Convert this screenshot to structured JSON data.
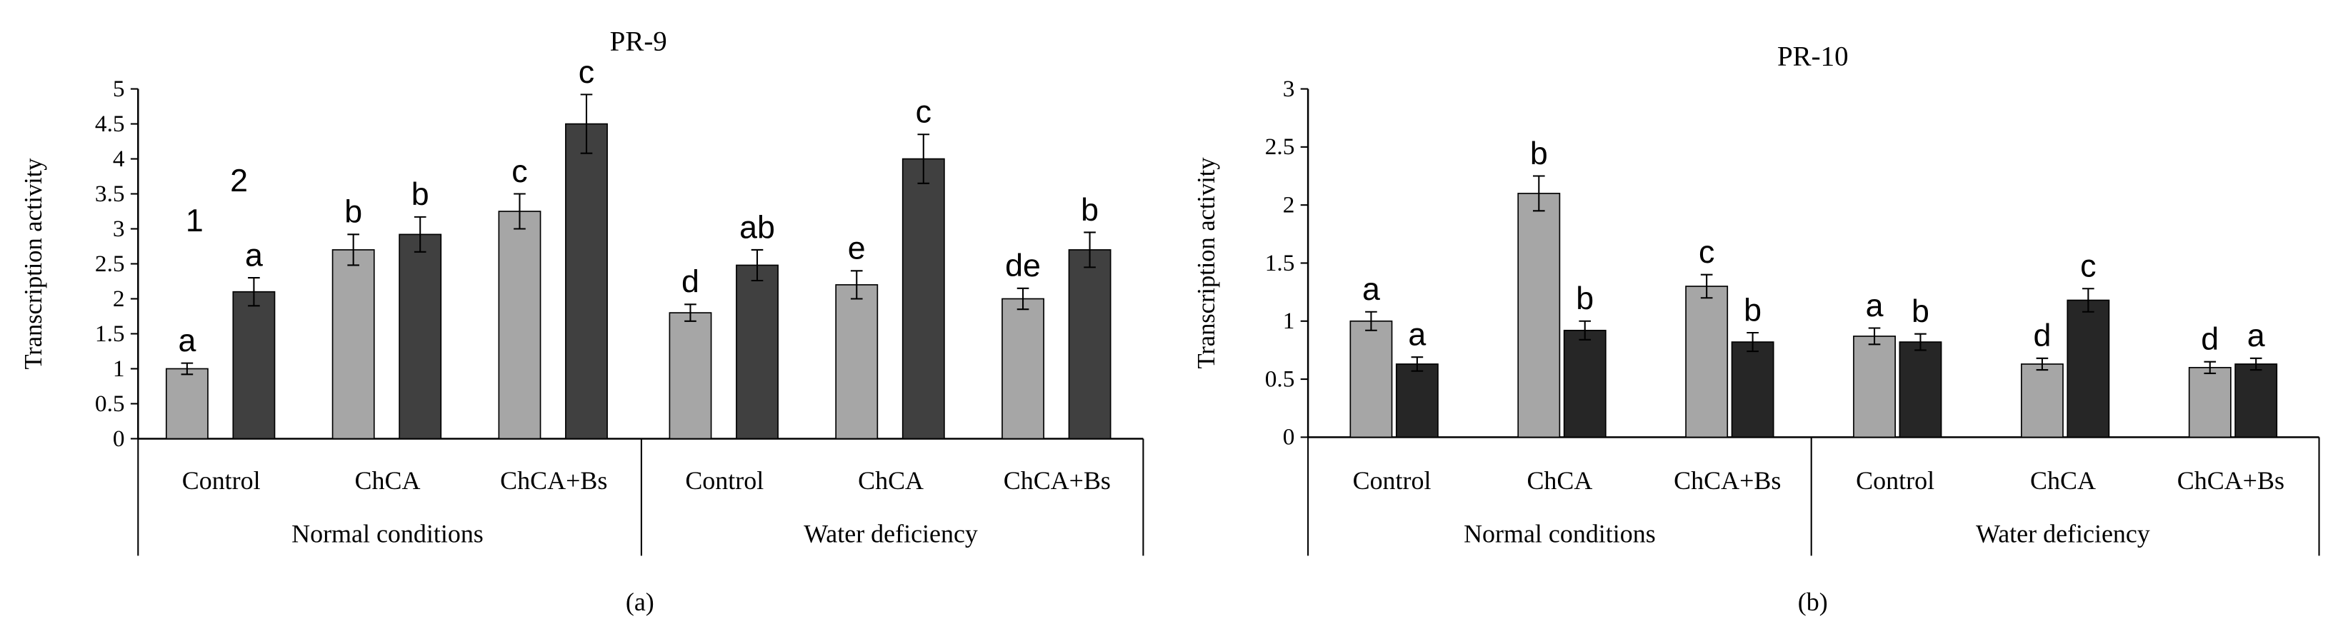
{
  "colors": {
    "series_1": "#a6a6a6",
    "series_2": "#404040",
    "series_2_alt": "#262626",
    "axis": "#000000",
    "background": "#ffffff"
  },
  "chart_data": [
    {
      "type": "bar",
      "title": "PR-9",
      "panel_label": "(a)",
      "ylabel": "Transcription activity",
      "xlabel": "",
      "ylim": [
        0,
        5
      ],
      "yticks": [
        "0",
        "0.5",
        "1",
        "1.5",
        "2",
        "2.5",
        "3",
        "3.5",
        "4",
        "4.5",
        "5"
      ],
      "grid": false,
      "categories": [
        "Control",
        "ChCA",
        "ChCA+Bs",
        "Control",
        "ChCA",
        "ChCA+Bs"
      ],
      "groups": [
        {
          "label": "Normal conditions",
          "span": [
            0,
            2
          ]
        },
        {
          "label": "Water deficiency",
          "span": [
            3,
            5
          ]
        }
      ],
      "series": [
        {
          "name": "1",
          "values": [
            1.0,
            2.7,
            3.25,
            1.8,
            2.2,
            2.0
          ],
          "errors": [
            0.08,
            0.22,
            0.25,
            0.12,
            0.2,
            0.15
          ],
          "letters": [
            "a",
            "b",
            "c",
            "d",
            "e",
            "de"
          ]
        },
        {
          "name": "2",
          "values": [
            2.1,
            2.92,
            4.5,
            2.48,
            4.0,
            2.7
          ],
          "errors": [
            0.2,
            0.25,
            0.42,
            0.22,
            0.35,
            0.25
          ],
          "letters": [
            "a",
            "b",
            "c",
            "ab",
            "c",
            "b"
          ]
        }
      ]
    },
    {
      "type": "bar",
      "title": "PR-10",
      "panel_label": "(b)",
      "ylabel": "Transcription activity",
      "xlabel": "",
      "ylim": [
        0,
        3
      ],
      "yticks": [
        "0",
        "0.5",
        "1",
        "1.5",
        "2",
        "2.5",
        "3"
      ],
      "grid": false,
      "categories": [
        "Control",
        "ChCA",
        "ChCA+Bs",
        "Control",
        "ChCA",
        "ChCA+Bs"
      ],
      "groups": [
        {
          "label": "Normal conditions",
          "span": [
            0,
            2
          ]
        },
        {
          "label": "Water deficiency",
          "span": [
            3,
            5
          ]
        }
      ],
      "series": [
        {
          "name": "1",
          "values": [
            1.0,
            2.1,
            1.3,
            0.87,
            0.63,
            0.6
          ],
          "errors": [
            0.08,
            0.15,
            0.1,
            0.07,
            0.05,
            0.05
          ],
          "letters": [
            "a",
            "b",
            "c",
            "a",
            "d",
            "d"
          ]
        },
        {
          "name": "2",
          "values": [
            0.63,
            0.92,
            0.82,
            0.82,
            1.18,
            0.63
          ],
          "errors": [
            0.06,
            0.08,
            0.08,
            0.07,
            0.1,
            0.05
          ],
          "letters": [
            "a",
            "b",
            "b",
            "b",
            "c",
            "a"
          ]
        }
      ]
    }
  ]
}
